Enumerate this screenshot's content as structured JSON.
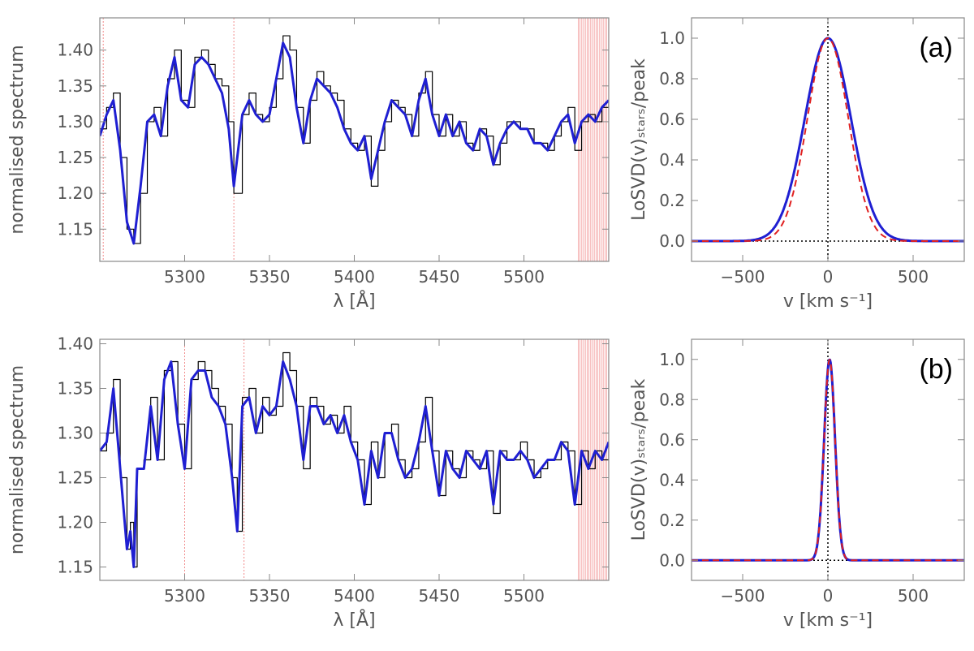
{
  "chart_data": [
    {
      "type": "line",
      "xlabel": "λ [Å]",
      "ylabel": "normalised spectrum",
      "xlim": [
        5250,
        5550
      ],
      "ylim": [
        1.105,
        1.445
      ],
      "xticks": [
        5300,
        5350,
        5400,
        5450,
        5500
      ],
      "yticks": [
        1.15,
        1.2,
        1.25,
        1.3,
        1.35,
        1.4
      ],
      "xtick_labels": [
        "5300",
        "5350",
        "5400",
        "5450",
        "5500"
      ],
      "ytick_labels": [
        "1.15",
        "1.20",
        "1.25",
        "1.30",
        "1.35",
        "1.40"
      ],
      "masked_lines": [
        5252,
        5329
      ],
      "masked_band": [
        5532,
        5550
      ],
      "series": [
        {
          "style": "data-histogram",
          "color": "#000000",
          "x": [
            5250,
            5254,
            5258,
            5262,
            5266,
            5270,
            5274,
            5278,
            5282,
            5286,
            5290,
            5294,
            5298,
            5302,
            5306,
            5310,
            5314,
            5318,
            5322,
            5326,
            5329,
            5334,
            5338,
            5342,
            5346,
            5350,
            5354,
            5358,
            5362,
            5366,
            5370,
            5374,
            5378,
            5382,
            5386,
            5390,
            5394,
            5398,
            5402,
            5406,
            5410,
            5414,
            5418,
            5422,
            5426,
            5430,
            5434,
            5438,
            5442,
            5446,
            5450,
            5454,
            5458,
            5462,
            5466,
            5470,
            5474,
            5478,
            5482,
            5486,
            5490,
            5494,
            5498,
            5502,
            5506,
            5510,
            5514,
            5518,
            5522,
            5526,
            5530,
            5534,
            5538,
            5542,
            5546,
            5550
          ],
          "y": [
            1.29,
            1.32,
            1.34,
            1.25,
            1.15,
            1.13,
            1.2,
            1.3,
            1.32,
            1.28,
            1.36,
            1.4,
            1.33,
            1.32,
            1.39,
            1.4,
            1.38,
            1.36,
            1.35,
            1.3,
            1.2,
            1.31,
            1.34,
            1.31,
            1.3,
            1.32,
            1.36,
            1.42,
            1.4,
            1.32,
            1.27,
            1.33,
            1.37,
            1.35,
            1.34,
            1.33,
            1.29,
            1.27,
            1.26,
            1.28,
            1.21,
            1.26,
            1.3,
            1.33,
            1.32,
            1.31,
            1.28,
            1.34,
            1.37,
            1.31,
            1.28,
            1.31,
            1.28,
            1.3,
            1.27,
            1.26,
            1.29,
            1.28,
            1.24,
            1.27,
            1.3,
            1.3,
            1.29,
            1.29,
            1.27,
            1.27,
            1.26,
            1.28,
            1.3,
            1.32,
            1.26,
            1.3,
            1.31,
            1.3,
            1.32,
            1.33
          ]
        },
        {
          "style": "best-fit",
          "color": "#1f1fd2",
          "x": [
            5250,
            5254,
            5258,
            5262,
            5266,
            5270,
            5274,
            5278,
            5282,
            5286,
            5290,
            5294,
            5298,
            5302,
            5306,
            5310,
            5314,
            5318,
            5322,
            5326,
            5329,
            5334,
            5338,
            5342,
            5346,
            5350,
            5354,
            5358,
            5362,
            5366,
            5370,
            5374,
            5378,
            5382,
            5386,
            5390,
            5394,
            5398,
            5402,
            5406,
            5410,
            5414,
            5418,
            5422,
            5426,
            5430,
            5434,
            5438,
            5442,
            5446,
            5450,
            5454,
            5458,
            5462,
            5466,
            5470,
            5474,
            5478,
            5482,
            5486,
            5490,
            5494,
            5498,
            5502,
            5506,
            5510,
            5514,
            5518,
            5522,
            5526,
            5530,
            5534,
            5538,
            5542,
            5546,
            5550
          ],
          "y": [
            1.28,
            1.31,
            1.33,
            1.26,
            1.16,
            1.13,
            1.21,
            1.3,
            1.31,
            1.28,
            1.35,
            1.39,
            1.33,
            1.32,
            1.38,
            1.39,
            1.38,
            1.36,
            1.34,
            1.29,
            1.21,
            1.31,
            1.33,
            1.31,
            1.3,
            1.31,
            1.36,
            1.41,
            1.39,
            1.32,
            1.27,
            1.33,
            1.36,
            1.35,
            1.34,
            1.32,
            1.29,
            1.27,
            1.26,
            1.28,
            1.22,
            1.26,
            1.3,
            1.33,
            1.32,
            1.31,
            1.28,
            1.33,
            1.36,
            1.31,
            1.28,
            1.31,
            1.28,
            1.3,
            1.27,
            1.26,
            1.29,
            1.28,
            1.24,
            1.27,
            1.29,
            1.3,
            1.29,
            1.29,
            1.27,
            1.27,
            1.26,
            1.28,
            1.3,
            1.31,
            1.27,
            1.3,
            1.31,
            1.3,
            1.32,
            1.33
          ]
        }
      ]
    },
    {
      "type": "line",
      "xlabel": "v [km s⁻¹]",
      "ylabel": "LoSVD(v)ₛₜₐᵣₛ/peak",
      "xlim": [
        -800,
        800
      ],
      "ylim": [
        -0.1,
        1.1
      ],
      "xticks": [
        -500,
        0,
        500
      ],
      "yticks": [
        0.0,
        0.2,
        0.4,
        0.6,
        0.8,
        1.0
      ],
      "xtick_labels": [
        "−500",
        "0",
        "500"
      ],
      "ytick_labels": [
        "0.0",
        "0.2",
        "0.4",
        "0.6",
        "0.8",
        "1.0"
      ],
      "annotation": "(a)",
      "series": [
        {
          "style": "losvd-gauss-hermite",
          "color": "#1f1fd2",
          "model": "gaussian",
          "mean": 0,
          "sigma": 135
        },
        {
          "style": "losvd-gaussian",
          "color": "#e02020",
          "model": "gaussian",
          "mean": 0,
          "sigma": 120,
          "dash": true
        }
      ]
    },
    {
      "type": "line",
      "xlabel": "λ [Å]",
      "ylabel": "normalised spectrum",
      "xlim": [
        5250,
        5550
      ],
      "ylim": [
        1.135,
        1.405
      ],
      "xticks": [
        5300,
        5350,
        5400,
        5450,
        5500
      ],
      "yticks": [
        1.15,
        1.2,
        1.25,
        1.3,
        1.35,
        1.4
      ],
      "xtick_labels": [
        "5300",
        "5350",
        "5400",
        "5450",
        "5500"
      ],
      "ytick_labels": [
        "1.15",
        "1.20",
        "1.25",
        "1.30",
        "1.35",
        "1.40"
      ],
      "masked_lines": [
        5300,
        5335
      ],
      "masked_band": [
        5532,
        5550
      ],
      "series": [
        {
          "style": "data-histogram",
          "color": "#000000",
          "x": [
            5250,
            5254,
            5258,
            5262,
            5266,
            5268,
            5270,
            5272,
            5276,
            5280,
            5284,
            5288,
            5292,
            5296,
            5300,
            5304,
            5308,
            5312,
            5316,
            5320,
            5324,
            5328,
            5331,
            5334,
            5338,
            5342,
            5346,
            5350,
            5354,
            5358,
            5362,
            5366,
            5370,
            5374,
            5378,
            5382,
            5386,
            5390,
            5394,
            5398,
            5402,
            5406,
            5410,
            5414,
            5418,
            5422,
            5426,
            5430,
            5434,
            5438,
            5442,
            5446,
            5450,
            5454,
            5458,
            5462,
            5466,
            5470,
            5474,
            5478,
            5482,
            5486,
            5490,
            5494,
            5498,
            5502,
            5506,
            5510,
            5514,
            5518,
            5522,
            5526,
            5530,
            5534,
            5538,
            5542,
            5546,
            5550
          ],
          "y": [
            1.28,
            1.3,
            1.36,
            1.25,
            1.17,
            1.2,
            1.15,
            1.26,
            1.27,
            1.34,
            1.27,
            1.37,
            1.38,
            1.31,
            1.26,
            1.36,
            1.38,
            1.37,
            1.35,
            1.33,
            1.31,
            1.25,
            1.19,
            1.34,
            1.35,
            1.3,
            1.34,
            1.32,
            1.33,
            1.39,
            1.37,
            1.33,
            1.26,
            1.34,
            1.33,
            1.31,
            1.32,
            1.3,
            1.33,
            1.29,
            1.27,
            1.22,
            1.29,
            1.25,
            1.3,
            1.31,
            1.27,
            1.25,
            1.26,
            1.29,
            1.34,
            1.28,
            1.23,
            1.28,
            1.26,
            1.25,
            1.28,
            1.27,
            1.26,
            1.28,
            1.21,
            1.28,
            1.27,
            1.27,
            1.29,
            1.27,
            1.25,
            1.26,
            1.27,
            1.27,
            1.29,
            1.28,
            1.22,
            1.28,
            1.26,
            1.28,
            1.27,
            1.29
          ]
        },
        {
          "style": "best-fit",
          "color": "#1f1fd2",
          "x": [
            5250,
            5254,
            5258,
            5262,
            5266,
            5268,
            5270,
            5272,
            5276,
            5280,
            5284,
            5288,
            5292,
            5296,
            5300,
            5304,
            5308,
            5312,
            5316,
            5320,
            5324,
            5328,
            5331,
            5334,
            5338,
            5342,
            5346,
            5350,
            5354,
            5358,
            5362,
            5366,
            5370,
            5374,
            5378,
            5382,
            5386,
            5390,
            5394,
            5398,
            5402,
            5406,
            5410,
            5414,
            5418,
            5422,
            5426,
            5430,
            5434,
            5438,
            5442,
            5446,
            5450,
            5454,
            5458,
            5462,
            5466,
            5470,
            5474,
            5478,
            5482,
            5486,
            5490,
            5494,
            5498,
            5502,
            5506,
            5510,
            5514,
            5518,
            5522,
            5526,
            5530,
            5534,
            5538,
            5542,
            5546,
            5550
          ],
          "y": [
            1.28,
            1.29,
            1.35,
            1.26,
            1.17,
            1.19,
            1.15,
            1.26,
            1.26,
            1.33,
            1.27,
            1.36,
            1.38,
            1.31,
            1.26,
            1.36,
            1.37,
            1.37,
            1.34,
            1.33,
            1.31,
            1.25,
            1.19,
            1.33,
            1.34,
            1.3,
            1.33,
            1.32,
            1.33,
            1.38,
            1.36,
            1.33,
            1.27,
            1.33,
            1.33,
            1.31,
            1.32,
            1.3,
            1.32,
            1.29,
            1.27,
            1.22,
            1.28,
            1.25,
            1.3,
            1.3,
            1.27,
            1.25,
            1.26,
            1.29,
            1.33,
            1.28,
            1.23,
            1.28,
            1.26,
            1.25,
            1.28,
            1.27,
            1.26,
            1.28,
            1.22,
            1.28,
            1.27,
            1.27,
            1.28,
            1.27,
            1.25,
            1.26,
            1.27,
            1.27,
            1.29,
            1.28,
            1.22,
            1.28,
            1.26,
            1.28,
            1.27,
            1.29
          ]
        }
      ]
    },
    {
      "type": "line",
      "xlabel": "v [km s⁻¹]",
      "ylabel": "LoSVD(v)ₛₜₐᵣₛ/peak",
      "xlim": [
        -800,
        800
      ],
      "ylim": [
        -0.1,
        1.1
      ],
      "xticks": [
        -500,
        0,
        500
      ],
      "yticks": [
        0.0,
        0.2,
        0.4,
        0.6,
        0.8,
        1.0
      ],
      "xtick_labels": [
        "−500",
        "0",
        "500"
      ],
      "ytick_labels": [
        "0.0",
        "0.2",
        "0.4",
        "0.6",
        "0.8",
        "1.0"
      ],
      "annotation": "(b)",
      "series": [
        {
          "style": "losvd-gauss-hermite",
          "color": "#1f1fd2",
          "model": "gaussian",
          "mean": 10,
          "sigma": 32
        },
        {
          "style": "losvd-gaussian",
          "color": "#e02020",
          "model": "gaussian",
          "mean": 10,
          "sigma": 32,
          "dash": true
        }
      ]
    }
  ]
}
